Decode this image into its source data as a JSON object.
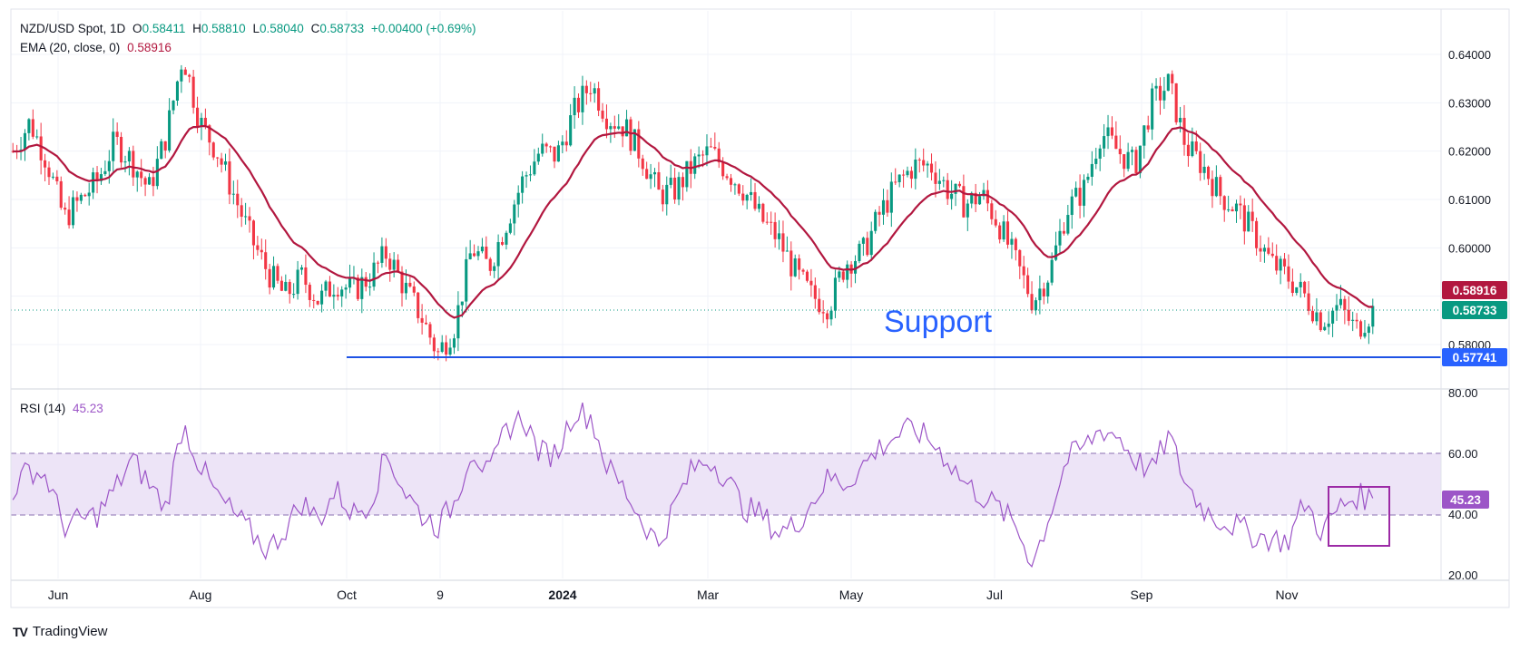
{
  "header": {
    "symbol": "NZD/USD Spot, 1D",
    "o_label": "O",
    "o": "0.58411",
    "h_label": "H",
    "h": "0.58810",
    "l_label": "L",
    "l": "0.58040",
    "c_label": "C",
    "c": "0.58733",
    "change": "+0.00400 (+0.69%)",
    "ema_label": "EMA (20, close, 0)",
    "ema_value": "0.58916",
    "rsi_label": "RSI (14)",
    "rsi_value": "45.23"
  },
  "footer": {
    "brand": "TradingView",
    "logo": "TV"
  },
  "colors": {
    "up": "#089981",
    "down": "#f23645",
    "ema": "#b2173f",
    "rsi": "#9c55c7",
    "support": "#2962ff",
    "rsi_band": "#ede4f7"
  },
  "chart_data": [
    {
      "type": "candlestick",
      "title": "NZD/USD Spot, 1D",
      "x_ticks": [
        "Jun",
        "Aug",
        "Oct",
        "9",
        "2024",
        "Mar",
        "May",
        "Jul",
        "Sep",
        "Nov"
      ],
      "y_ticks": [
        "0.64000",
        "0.63000",
        "0.62000",
        "0.61000",
        "0.60000",
        "0.58000"
      ],
      "ylim": [
        0.5745,
        0.6435
      ],
      "series": [
        {
          "name": "EMA (20, close, 0)",
          "last_value": "0.58916"
        }
      ],
      "price_path": [
        0.62,
        0.626,
        0.618,
        0.606,
        0.61,
        0.614,
        0.622,
        0.618,
        0.612,
        0.623,
        0.64,
        0.626,
        0.62,
        0.611,
        0.602,
        0.595,
        0.59,
        0.594,
        0.589,
        0.593,
        0.591,
        0.594,
        0.599,
        0.592,
        0.586,
        0.578,
        0.584,
        0.6,
        0.596,
        0.605,
        0.614,
        0.62,
        0.619,
        0.628,
        0.634,
        0.627,
        0.625,
        0.619,
        0.611,
        0.612,
        0.617,
        0.62,
        0.616,
        0.612,
        0.606,
        0.602,
        0.595,
        0.59,
        0.588,
        0.597,
        0.599,
        0.607,
        0.613,
        0.617,
        0.617,
        0.612,
        0.609,
        0.611,
        0.605,
        0.597,
        0.589,
        0.595,
        0.608,
        0.612,
        0.624,
        0.62,
        0.617,
        0.63,
        0.634,
        0.621,
        0.617,
        0.611,
        0.608,
        0.603,
        0.597,
        0.594,
        0.59,
        0.585,
        0.588,
        0.583,
        0.587
      ],
      "annotations": [
        {
          "text": "Support",
          "value": 0.57741,
          "price_label": "0.57741",
          "color": "#2962ff"
        },
        {
          "text": "0.58916",
          "value": 0.58916,
          "kind": "ema-last"
        },
        {
          "text": "0.58733",
          "value": 0.58733,
          "kind": "close-last"
        }
      ]
    },
    {
      "type": "line",
      "title": "RSI (14)",
      "y_ticks": [
        "80.00",
        "60.00",
        "40.00",
        "20.00"
      ],
      "ylim": [
        17,
        83
      ],
      "band": [
        40,
        60
      ],
      "last_value": "45.23",
      "values": [
        48,
        55,
        52,
        36,
        38,
        40,
        48,
        58,
        50,
        42,
        70,
        56,
        46,
        40,
        34,
        28,
        35,
        44,
        38,
        48,
        40,
        44,
        60,
        48,
        40,
        36,
        44,
        62,
        52,
        68,
        72,
        60,
        60,
        74,
        72,
        55,
        48,
        38,
        30,
        44,
        55,
        58,
        52,
        42,
        40,
        34,
        36,
        44,
        52,
        50,
        56,
        62,
        66,
        68,
        64,
        58,
        50,
        46,
        42,
        36,
        24,
        40,
        58,
        62,
        68,
        66,
        58,
        54,
        66,
        50,
        42,
        38,
        36,
        33,
        32,
        31,
        44,
        34,
        42,
        46,
        45.23
      ],
      "annotations": [
        {
          "text": "box",
          "kind": "highlight"
        }
      ]
    }
  ]
}
